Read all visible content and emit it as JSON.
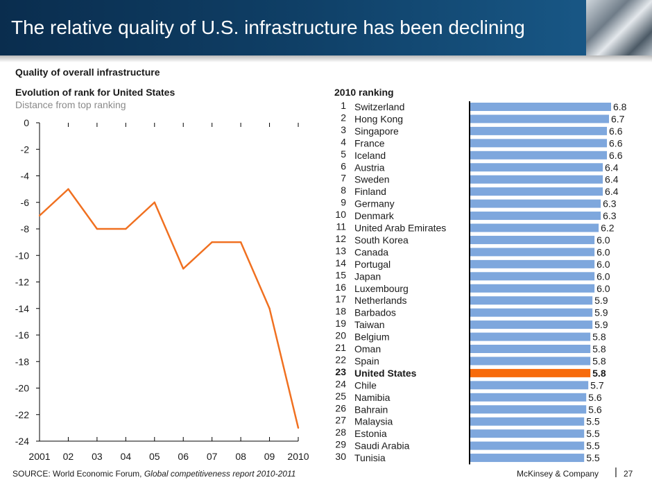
{
  "header": {
    "title": "The relative quality of U.S. infrastructure has been declining"
  },
  "subtitle": "Quality of overall infrastructure",
  "colors": {
    "header_bg": "#0f3f66",
    "line": "#f07020",
    "bar": "#7ea7dd",
    "highlight": "#f76b0c",
    "axis": "#000000"
  },
  "chart_data": [
    {
      "type": "line",
      "title": "Evolution of rank for United States",
      "subtitle": "Distance from top ranking",
      "x": [
        "2001",
        "02",
        "03",
        "04",
        "05",
        "06",
        "07",
        "08",
        "09",
        "2010"
      ],
      "series": [
        {
          "values": [
            -7,
            -5,
            -8,
            -8,
            -6,
            -11,
            -9,
            -9,
            -14,
            -23
          ]
        }
      ],
      "ylim": [
        -24,
        0
      ],
      "yticks": [
        0,
        -2,
        -4,
        -6,
        -8,
        -10,
        -12,
        -14,
        -16,
        -18,
        -20,
        -22,
        -24
      ],
      "grid": false
    },
    {
      "type": "bar",
      "orientation": "horizontal",
      "title": "2010 ranking",
      "ranks": [
        1,
        2,
        3,
        4,
        5,
        6,
        7,
        8,
        9,
        10,
        11,
        12,
        13,
        14,
        15,
        16,
        17,
        18,
        19,
        20,
        21,
        22,
        23,
        24,
        25,
        26,
        27,
        28,
        29,
        30
      ],
      "categories": [
        "Switzerland",
        "Hong Kong",
        "Singapore",
        "France",
        "Iceland",
        "Austria",
        "Sweden",
        "Finland",
        "Germany",
        "Denmark",
        "United Arab Emirates",
        "South Korea",
        "Canada",
        "Portugal",
        "Japan",
        "Luxembourg",
        "Netherlands",
        "Barbados",
        "Taiwan",
        "Belgium",
        "Oman",
        "Spain",
        "United States",
        "Chile",
        "Namibia",
        "Bahrain",
        "Malaysia",
        "Estonia",
        "Saudi Arabia",
        "Tunisia"
      ],
      "values": [
        6.8,
        6.7,
        6.6,
        6.6,
        6.6,
        6.4,
        6.4,
        6.4,
        6.3,
        6.3,
        6.2,
        6.0,
        6.0,
        6.0,
        6.0,
        6.0,
        5.9,
        5.9,
        5.9,
        5.8,
        5.8,
        5.8,
        5.8,
        5.7,
        5.6,
        5.6,
        5.5,
        5.5,
        5.5,
        5.5
      ],
      "value_labels": [
        "6.8",
        "6.7",
        "6.6",
        "6.6",
        "6.6",
        "6.4",
        "6.4",
        "6.4",
        "6.3",
        "6.3",
        "6.2",
        "6.0",
        "6.0",
        "6.0",
        "6.0",
        "6.0",
        "5.9",
        "5.9",
        "5.9",
        "5.8",
        "5.8",
        "5.8",
        "5.8",
        "5.7",
        "5.6",
        "5.6",
        "5.5",
        "5.5",
        "5.5",
        "5.5"
      ],
      "highlight": "United States"
    }
  ],
  "footer": {
    "source_prefix": "SOURCE: World Economic Forum, ",
    "source_italic": "Global competitiveness report  2010-2011",
    "brand": "McKinsey & Company",
    "separator": "|",
    "page": "27"
  }
}
